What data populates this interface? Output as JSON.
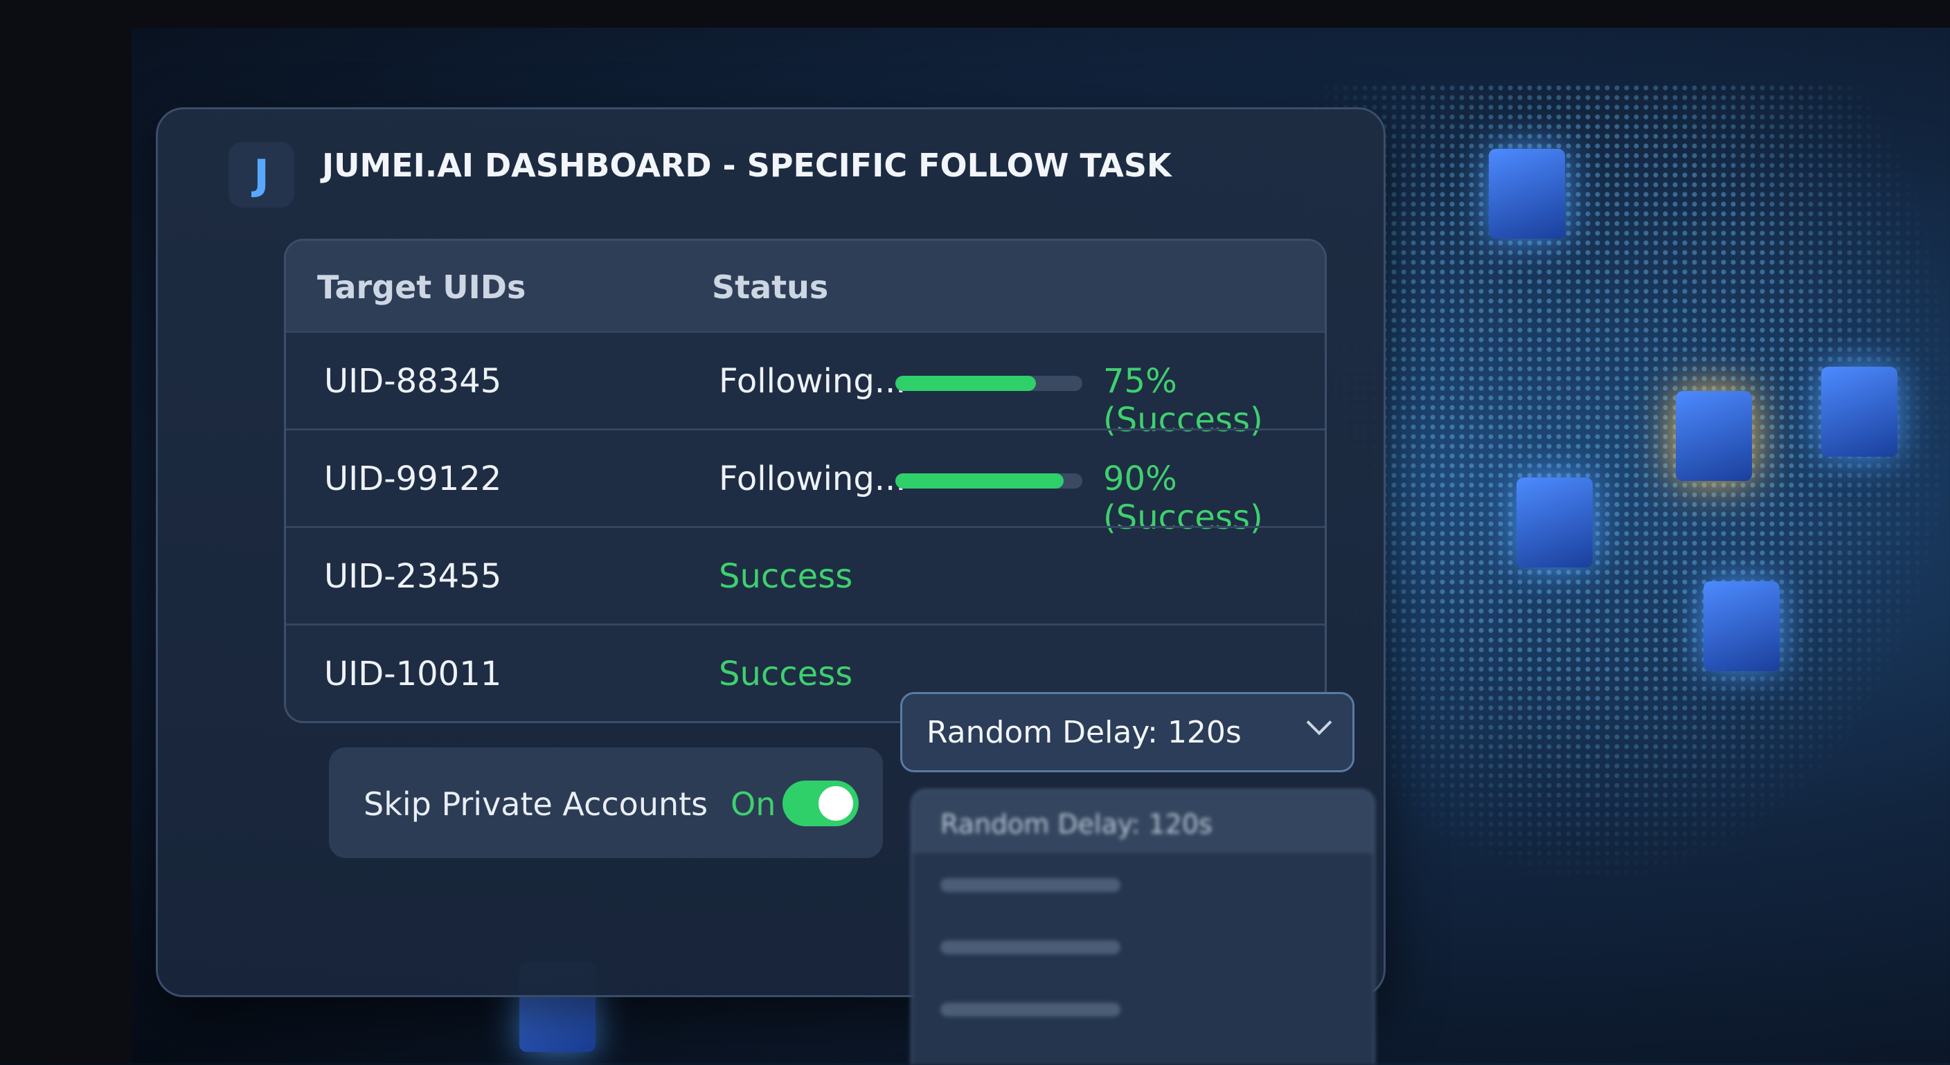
{
  "header": {
    "logo": "J",
    "title": "JUMEI.AI DASHBOARD - SPECIFIC FOLLOW TASK"
  },
  "table": {
    "columns": [
      "Target UIDs",
      "Status"
    ],
    "rows": [
      {
        "uid": "UID-88345",
        "status": "Following...",
        "progress": 75,
        "progress_label": "75% (Success)"
      },
      {
        "uid": "UID-99122",
        "status": "Following...",
        "progress": 90,
        "progress_label": "90% (Success)"
      },
      {
        "uid": "UID-23455",
        "status": "Success"
      },
      {
        "uid": "UID-10011",
        "status": "Success"
      }
    ]
  },
  "toggle": {
    "label": "Skip Private Accounts",
    "state": "On"
  },
  "dropdown": {
    "selected": "Random Delay: 120s",
    "options": [
      "Random Delay: 120s"
    ]
  }
}
